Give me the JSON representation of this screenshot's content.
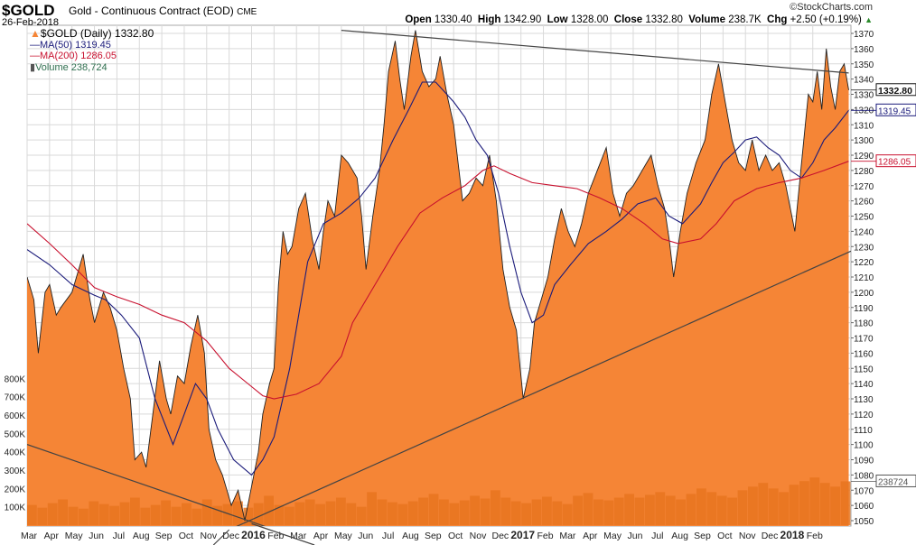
{
  "header": {
    "symbol": "$GOLD",
    "description": "Gold - Continuous Contract (EOD)",
    "exchange": "CME",
    "date": "26-Feb-2018",
    "copyright": "©StockCharts.com",
    "open_label": "Open",
    "open": "1330.40",
    "high_label": "High",
    "high": "1342.90",
    "low_label": "Low",
    "low": "1328.00",
    "close_label": "Close",
    "close": "1332.80",
    "volume_label": "Volume",
    "volume": "238.7K",
    "chg_label": "Chg",
    "chg": "+2.50 (+0.19%)"
  },
  "legend": {
    "price": "$GOLD (Daily) 1332.80",
    "ma50": "MA(50) 1319.45",
    "ma200": "MA(200) 1286.05",
    "volume": "Volume 238,724"
  },
  "colors": {
    "price_fill": "#f58536",
    "ma50": "#1a1a7a",
    "ma200": "#c8102e",
    "volume": "#e8741e",
    "grid": "#d9d9d9"
  },
  "chart_data": {
    "type": "area",
    "x_unit": "months since Mar 2015",
    "ylim": [
      1045,
      1375
    ],
    "y_ticks": [
      1050,
      1060,
      1070,
      1080,
      1090,
      1100,
      1110,
      1120,
      1130,
      1140,
      1150,
      1160,
      1170,
      1180,
      1190,
      1200,
      1210,
      1220,
      1230,
      1240,
      1250,
      1260,
      1270,
      1280,
      1290,
      1300,
      1310,
      1320,
      1330,
      1340,
      1350,
      1360,
      1370
    ],
    "volume_ticks": [
      {
        "v": 100000,
        "label": "100K"
      },
      {
        "v": 200000,
        "label": "200K"
      },
      {
        "v": 300000,
        "label": "300K"
      },
      {
        "v": 400000,
        "label": "400K"
      },
      {
        "v": 500000,
        "label": "500K"
      },
      {
        "v": 600000,
        "label": "600K"
      },
      {
        "v": 700000,
        "label": "700K"
      },
      {
        "v": 800000,
        "label": "800K"
      }
    ],
    "x_labels": [
      {
        "t": 0,
        "label": "Mar"
      },
      {
        "t": 1,
        "label": "Apr"
      },
      {
        "t": 2,
        "label": "May"
      },
      {
        "t": 3,
        "label": "Jun"
      },
      {
        "t": 4,
        "label": "Jul"
      },
      {
        "t": 5,
        "label": "Aug"
      },
      {
        "t": 6,
        "label": "Sep"
      },
      {
        "t": 7,
        "label": "Oct"
      },
      {
        "t": 8,
        "label": "Nov"
      },
      {
        "t": 9,
        "label": "Dec"
      },
      {
        "t": 10,
        "label": "2016",
        "bold": true
      },
      {
        "t": 11,
        "label": "Feb"
      },
      {
        "t": 12,
        "label": "Mar"
      },
      {
        "t": 13,
        "label": "Apr"
      },
      {
        "t": 14,
        "label": "May"
      },
      {
        "t": 15,
        "label": "Jun"
      },
      {
        "t": 16,
        "label": "Jul"
      },
      {
        "t": 17,
        "label": "Aug"
      },
      {
        "t": 18,
        "label": "Sep"
      },
      {
        "t": 19,
        "label": "Oct"
      },
      {
        "t": 20,
        "label": "Nov"
      },
      {
        "t": 21,
        "label": "Dec"
      },
      {
        "t": 22,
        "label": "2017",
        "bold": true
      },
      {
        "t": 23,
        "label": "Feb"
      },
      {
        "t": 24,
        "label": "Mar"
      },
      {
        "t": 25,
        "label": "Apr"
      },
      {
        "t": 26,
        "label": "May"
      },
      {
        "t": 27,
        "label": "Jun"
      },
      {
        "t": 28,
        "label": "Jul"
      },
      {
        "t": 29,
        "label": "Aug"
      },
      {
        "t": 30,
        "label": "Sep"
      },
      {
        "t": 31,
        "label": "Oct"
      },
      {
        "t": 32,
        "label": "Nov"
      },
      {
        "t": 33,
        "label": "Dec"
      },
      {
        "t": 34,
        "label": "2018",
        "bold": true
      },
      {
        "t": 35,
        "label": "Feb"
      }
    ],
    "price": [
      [
        0,
        1210
      ],
      [
        0.3,
        1195
      ],
      [
        0.5,
        1160
      ],
      [
        0.8,
        1200
      ],
      [
        1,
        1205
      ],
      [
        1.3,
        1185
      ],
      [
        1.5,
        1190
      ],
      [
        2,
        1200
      ],
      [
        2.5,
        1225
      ],
      [
        2.8,
        1195
      ],
      [
        3,
        1180
      ],
      [
        3.4,
        1200
      ],
      [
        3.7,
        1190
      ],
      [
        4,
        1175
      ],
      [
        4.3,
        1150
      ],
      [
        4.6,
        1130
      ],
      [
        4.8,
        1090
      ],
      [
        5.1,
        1095
      ],
      [
        5.3,
        1085
      ],
      [
        5.6,
        1120
      ],
      [
        5.9,
        1155
      ],
      [
        6.2,
        1130
      ],
      [
        6.4,
        1120
      ],
      [
        6.7,
        1145
      ],
      [
        7,
        1140
      ],
      [
        7.3,
        1165
      ],
      [
        7.6,
        1185
      ],
      [
        7.9,
        1160
      ],
      [
        8.1,
        1110
      ],
      [
        8.4,
        1090
      ],
      [
        8.7,
        1080
      ],
      [
        8.9,
        1070
      ],
      [
        9.1,
        1060
      ],
      [
        9.4,
        1070
      ],
      [
        9.7,
        1050
      ],
      [
        9.9,
        1065
      ],
      [
        10.1,
        1080
      ],
      [
        10.3,
        1095
      ],
      [
        10.5,
        1120
      ],
      [
        10.8,
        1140
      ],
      [
        11,
        1150
      ],
      [
        11.2,
        1205
      ],
      [
        11.4,
        1240
      ],
      [
        11.6,
        1225
      ],
      [
        11.8,
        1230
      ],
      [
        12.1,
        1255
      ],
      [
        12.4,
        1265
      ],
      [
        12.7,
        1235
      ],
      [
        13,
        1215
      ],
      [
        13.2,
        1240
      ],
      [
        13.4,
        1260
      ],
      [
        13.7,
        1250
      ],
      [
        14,
        1290
      ],
      [
        14.3,
        1285
      ],
      [
        14.7,
        1275
      ],
      [
        14.9,
        1250
      ],
      [
        15.1,
        1215
      ],
      [
        15.4,
        1250
      ],
      [
        15.7,
        1280
      ],
      [
        15.9,
        1310
      ],
      [
        16.1,
        1345
      ],
      [
        16.4,
        1365
      ],
      [
        16.6,
        1340
      ],
      [
        16.8,
        1320
      ],
      [
        17.1,
        1355
      ],
      [
        17.3,
        1372
      ],
      [
        17.6,
        1345
      ],
      [
        17.9,
        1335
      ],
      [
        18.2,
        1340
      ],
      [
        18.4,
        1355
      ],
      [
        18.7,
        1330
      ],
      [
        19,
        1310
      ],
      [
        19.2,
        1285
      ],
      [
        19.4,
        1260
      ],
      [
        19.7,
        1265
      ],
      [
        20,
        1275
      ],
      [
        20.3,
        1270
      ],
      [
        20.6,
        1290
      ],
      [
        20.9,
        1260
      ],
      [
        21.2,
        1215
      ],
      [
        21.5,
        1190
      ],
      [
        21.8,
        1175
      ],
      [
        22,
        1145
      ],
      [
        22.1,
        1130
      ],
      [
        22.4,
        1150
      ],
      [
        22.6,
        1180
      ],
      [
        22.9,
        1195
      ],
      [
        23.2,
        1210
      ],
      [
        23.5,
        1235
      ],
      [
        23.8,
        1255
      ],
      [
        24.1,
        1240
      ],
      [
        24.4,
        1230
      ],
      [
        24.7,
        1245
      ],
      [
        25,
        1265
      ],
      [
        25.4,
        1280
      ],
      [
        25.8,
        1295
      ],
      [
        26.1,
        1265
      ],
      [
        26.4,
        1250
      ],
      [
        26.7,
        1265
      ],
      [
        27,
        1270
      ],
      [
        27.4,
        1280
      ],
      [
        27.8,
        1290
      ],
      [
        28.1,
        1270
      ],
      [
        28.4,
        1255
      ],
      [
        28.6,
        1235
      ],
      [
        28.8,
        1210
      ],
      [
        29.1,
        1240
      ],
      [
        29.4,
        1265
      ],
      [
        29.8,
        1285
      ],
      [
        30.2,
        1300
      ],
      [
        30.5,
        1330
      ],
      [
        30.8,
        1350
      ],
      [
        31.1,
        1325
      ],
      [
        31.4,
        1300
      ],
      [
        31.7,
        1285
      ],
      [
        32,
        1280
      ],
      [
        32.3,
        1300
      ],
      [
        32.6,
        1280
      ],
      [
        32.9,
        1290
      ],
      [
        33.2,
        1280
      ],
      [
        33.5,
        1285
      ],
      [
        33.8,
        1270
      ],
      [
        34,
        1255
      ],
      [
        34.2,
        1240
      ],
      [
        34.5,
        1285
      ],
      [
        34.8,
        1330
      ],
      [
        35,
        1325
      ],
      [
        35.2,
        1345
      ],
      [
        35.4,
        1320
      ],
      [
        35.6,
        1360
      ],
      [
        35.8,
        1335
      ],
      [
        36,
        1320
      ],
      [
        36.2,
        1345
      ],
      [
        36.4,
        1350
      ],
      [
        36.6,
        1332.8
      ]
    ],
    "ma50": [
      [
        0,
        1228
      ],
      [
        1,
        1218
      ],
      [
        2,
        1205
      ],
      [
        3,
        1198
      ],
      [
        3.5,
        1195
      ],
      [
        4.2,
        1185
      ],
      [
        5,
        1170
      ],
      [
        5.7,
        1130
      ],
      [
        6.5,
        1100
      ],
      [
        7,
        1120
      ],
      [
        7.5,
        1140
      ],
      [
        8,
        1130
      ],
      [
        8.5,
        1110
      ],
      [
        9.2,
        1090
      ],
      [
        10,
        1080
      ],
      [
        10.5,
        1090
      ],
      [
        11,
        1105
      ],
      [
        11.7,
        1150
      ],
      [
        12.5,
        1220
      ],
      [
        13.2,
        1245
      ],
      [
        14,
        1252
      ],
      [
        14.8,
        1262
      ],
      [
        15.5,
        1275
      ],
      [
        16.3,
        1300
      ],
      [
        17,
        1320
      ],
      [
        17.6,
        1338
      ],
      [
        18.2,
        1338
      ],
      [
        19,
        1325
      ],
      [
        19.5,
        1315
      ],
      [
        20,
        1300
      ],
      [
        20.5,
        1290
      ],
      [
        21,
        1265
      ],
      [
        21.5,
        1230
      ],
      [
        22,
        1200
      ],
      [
        22.5,
        1180
      ],
      [
        23,
        1185
      ],
      [
        23.5,
        1205
      ],
      [
        24.2,
        1218
      ],
      [
        25,
        1232
      ],
      [
        25.8,
        1240
      ],
      [
        26.5,
        1248
      ],
      [
        27.2,
        1258
      ],
      [
        28,
        1262
      ],
      [
        28.6,
        1250
      ],
      [
        29.2,
        1245
      ],
      [
        30,
        1258
      ],
      [
        30.5,
        1272
      ],
      [
        31,
        1285
      ],
      [
        31.5,
        1292
      ],
      [
        32,
        1300
      ],
      [
        32.5,
        1302
      ],
      [
        33,
        1295
      ],
      [
        33.5,
        1290
      ],
      [
        34,
        1280
      ],
      [
        34.5,
        1275
      ],
      [
        35,
        1285
      ],
      [
        35.5,
        1300
      ],
      [
        36,
        1308
      ],
      [
        36.6,
        1319.45
      ]
    ],
    "ma200": [
      [
        0,
        1245
      ],
      [
        1,
        1232
      ],
      [
        2,
        1218
      ],
      [
        3,
        1203
      ],
      [
        4,
        1197
      ],
      [
        5,
        1192
      ],
      [
        6,
        1185
      ],
      [
        7,
        1180
      ],
      [
        8,
        1168
      ],
      [
        9,
        1150
      ],
      [
        10,
        1138
      ],
      [
        10.5,
        1132
      ],
      [
        11,
        1130
      ],
      [
        12,
        1133
      ],
      [
        13,
        1140
      ],
      [
        14,
        1158
      ],
      [
        14.5,
        1180
      ],
      [
        15.5,
        1205
      ],
      [
        16.5,
        1230
      ],
      [
        17.5,
        1252
      ],
      [
        18.5,
        1262
      ],
      [
        19.5,
        1270
      ],
      [
        20.3,
        1280
      ],
      [
        20.8,
        1283
      ],
      [
        21.5,
        1278
      ],
      [
        22.5,
        1272
      ],
      [
        23.5,
        1270
      ],
      [
        24.5,
        1268
      ],
      [
        25.5,
        1262
      ],
      [
        26.5,
        1255
      ],
      [
        27.5,
        1245
      ],
      [
        28.3,
        1235
      ],
      [
        29,
        1232
      ],
      [
        30,
        1235
      ],
      [
        30.7,
        1245
      ],
      [
        31.5,
        1260
      ],
      [
        32.5,
        1268
      ],
      [
        33.5,
        1272
      ],
      [
        34.5,
        1275
      ],
      [
        35.5,
        1280
      ],
      [
        36.6,
        1286.05
      ]
    ],
    "trendlines": [
      [
        [
          14,
          1372
        ],
        [
          36.6,
          1344
        ]
      ],
      [
        [
          9,
          1044
        ],
        [
          36.7,
          1227
        ]
      ],
      [
        [
          0,
          1100
        ],
        [
          12.8,
          1035
        ]
      ]
    ],
    "volume": [
      110,
      95,
      120,
      140,
      100,
      90,
      130,
      115,
      105,
      125,
      150,
      95,
      110,
      135,
      100,
      120,
      90,
      140,
      105,
      115,
      130,
      95,
      120,
      160,
      110,
      100,
      125,
      140,
      115,
      130,
      150,
      120,
      100,
      180,
      140,
      125,
      115,
      130,
      150,
      170,
      140,
      120,
      135,
      160,
      145,
      190,
      150,
      130,
      120,
      140,
      155,
      130,
      115,
      160,
      175,
      140,
      135,
      150,
      170,
      150,
      165,
      180,
      160,
      140,
      170,
      200,
      180,
      160,
      150,
      190,
      210,
      230,
      200,
      180,
      220,
      240,
      260,
      230,
      210,
      238.7
    ],
    "volume_unit": "thousands",
    "labels": {
      "last_close": "1332.80",
      "ma50_last": "1319.45",
      "ma200_last": "1286.05",
      "volume_last": "238724"
    }
  }
}
